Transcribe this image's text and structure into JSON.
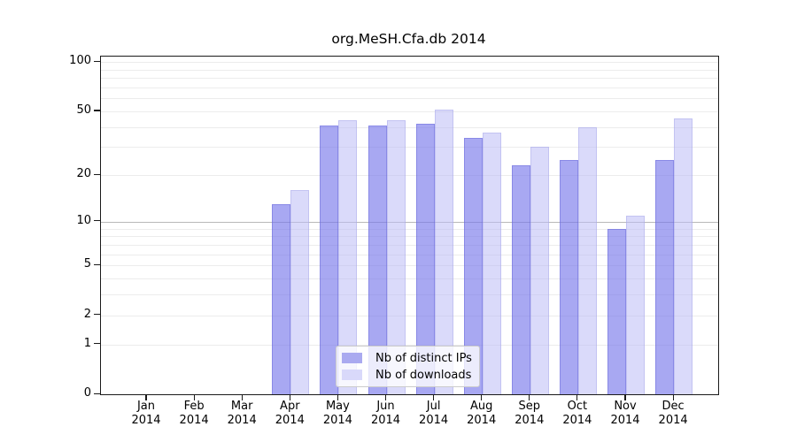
{
  "title": "org.MeSH.Cfa.db 2014",
  "chart_data": {
    "type": "bar",
    "title": "org.MeSH.Cfa.db 2014",
    "categories": [
      "Jan",
      "Feb",
      "Mar",
      "Apr",
      "May",
      "Jun",
      "Jul",
      "Aug",
      "Sep",
      "Oct",
      "Nov",
      "Dec"
    ],
    "year_label": "2014",
    "series": [
      {
        "name": "Nb of distinct IPs",
        "values": [
          0,
          0,
          0,
          13,
          41,
          41,
          42,
          34,
          23,
          25,
          9,
          25
        ],
        "fill": "rgba(122,122,235,0.65)",
        "edge": "rgba(100,100,215,0.45)",
        "swatch": "#aaaaf0"
      },
      {
        "name": "Nb of downloads",
        "values": [
          0,
          0,
          0,
          16,
          44,
          44,
          51,
          37,
          30,
          40,
          11,
          45
        ],
        "fill": "rgba(187,187,245,0.55)",
        "edge": "rgba(160,160,230,0.4)",
        "swatch": "#d9d9fa"
      }
    ],
    "y_ticks": [
      0,
      1,
      2,
      5,
      10,
      20,
      50,
      100
    ],
    "y_scale": "log10(1+x)",
    "ylim": [
      0,
      110
    ],
    "grid": true,
    "gridlines_minor": [
      1,
      2,
      3,
      4,
      5,
      6,
      7,
      8,
      9,
      20,
      30,
      40,
      50,
      60,
      70,
      80,
      90,
      100
    ],
    "gridlines_emphasis": [
      10
    ],
    "grid_color_minor": "#ececec",
    "grid_color_emphasis": "#b8b8b8",
    "legend_position": "lower-center-inside",
    "axis_color": "#1a1a1a"
  }
}
